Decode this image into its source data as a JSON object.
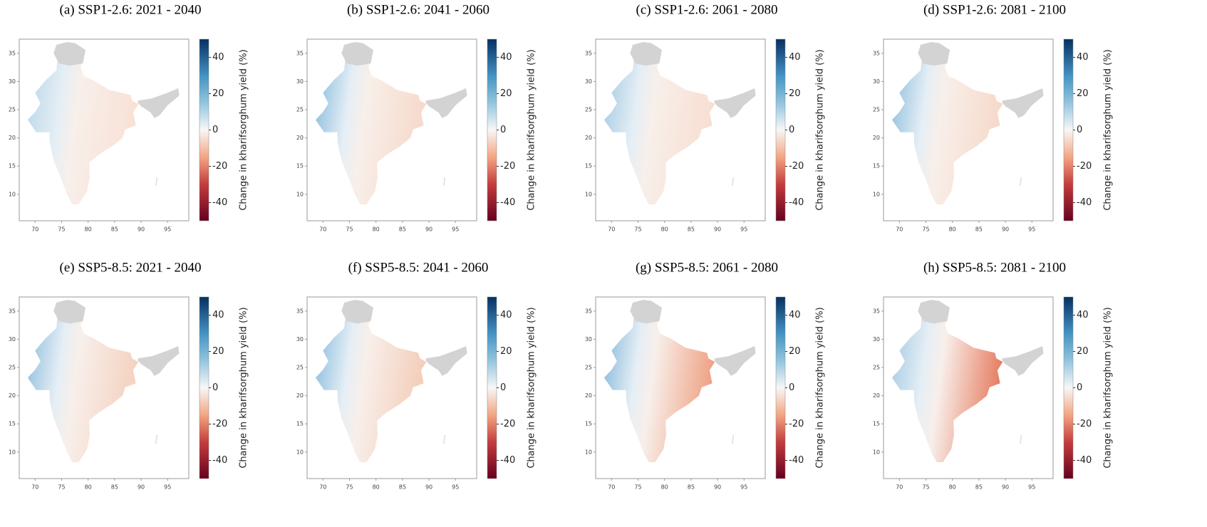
{
  "panels": [
    {
      "title": "(a) SSP1-2.6: 2021 - 2040"
    },
    {
      "title": "(b) SSP1-2.6: 2041 - 2060"
    },
    {
      "title": "(c) SSP1-2.6: 2061 - 2080"
    },
    {
      "title": "(d) SSP1-2.6: 2081 - 2100"
    },
    {
      "title": "(e) SSP5-8.5: 2021 - 2040"
    },
    {
      "title": "(f) SSP5-8.5: 2041 - 2060"
    },
    {
      "title": "(g) SSP5-8.5: 2061 - 2080"
    },
    {
      "title": "(h) SSP5-8.5: 2081 - 2100"
    }
  ],
  "map_axes": {
    "xlim": [
      67,
      99
    ],
    "ylim": [
      5.3,
      37.5
    ],
    "xticks": [
      70,
      75,
      80,
      85,
      90,
      95
    ],
    "yticks": [
      10,
      15,
      20,
      25,
      30,
      35
    ]
  },
  "colorbar": {
    "label": "Change in kharifsorghum yield (%)",
    "lim": [
      -50,
      50
    ],
    "ticks": [
      -40,
      -20,
      0,
      20,
      40
    ]
  }
}
